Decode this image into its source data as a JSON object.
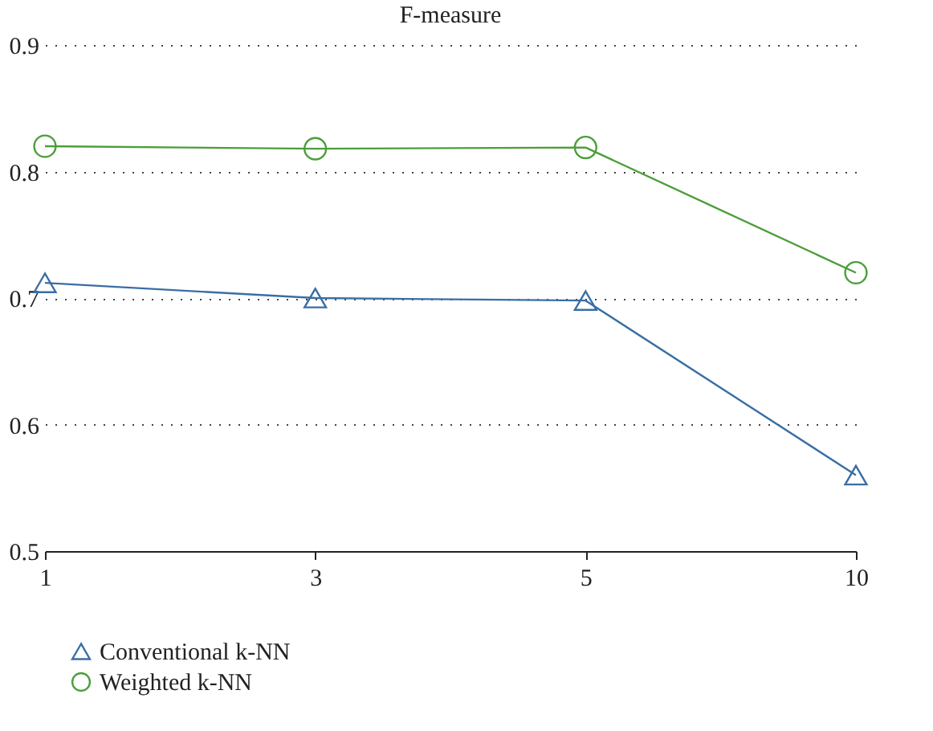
{
  "chart_data": {
    "type": "line",
    "title": "F-measure",
    "categories": [
      "1",
      "3",
      "5",
      "10"
    ],
    "series": [
      {
        "name": "Conventional k-NN",
        "color": "#3a6ea5",
        "marker": "triangle",
        "values": [
          0.712,
          0.7,
          0.698,
          0.56
        ]
      },
      {
        "name": "Weighted k-NN",
        "color": "#4c9e3a",
        "marker": "circle",
        "values": [
          0.82,
          0.818,
          0.819,
          0.72
        ]
      }
    ],
    "ylim": [
      0.5,
      0.9
    ],
    "yticks": [
      0.5,
      0.6,
      0.7,
      0.8,
      0.9
    ],
    "grid": "y",
    "legend": "bottom left",
    "line_style": "solid"
  }
}
